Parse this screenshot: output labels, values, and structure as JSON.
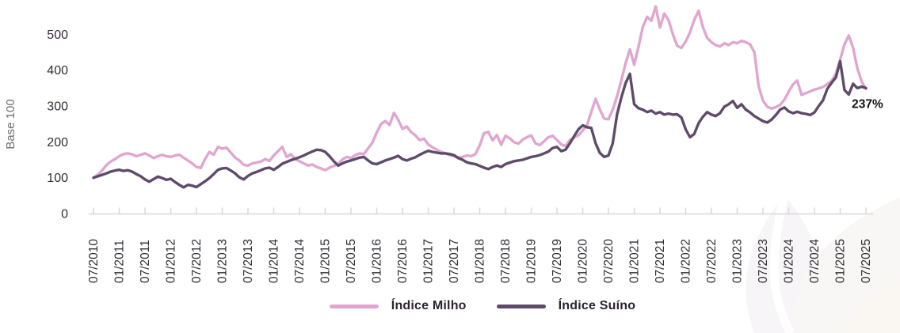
{
  "chart_data": {
    "type": "line",
    "ylabel": "Base 100",
    "y_ticks": [
      0,
      100,
      200,
      300,
      400,
      500
    ],
    "ylim": [
      0,
      595
    ],
    "grid": false,
    "legend_position": "bottom-center",
    "x_start": "07/2010",
    "x_end": "07/2025",
    "x_frequency": "monthly",
    "months_per_tick": 6,
    "x_tick_labels": [
      "07/2010",
      "01/2011",
      "07/2011",
      "01/2012",
      "07/2012",
      "01/2013",
      "07/2013",
      "01/2014",
      "07/2014",
      "01/2015",
      "07/2015",
      "01/2016",
      "07/2016",
      "01/2017",
      "07/2017",
      "01/2018",
      "07/2018",
      "01/2019",
      "07/2019",
      "01/2020",
      "07/2020",
      "01/2021",
      "07/2021",
      "01/2022",
      "07/2022",
      "01/2023",
      "07/2023",
      "01/2024",
      "07/2024",
      "01/2025",
      "07/2025"
    ],
    "annotation": {
      "text": "237%"
    },
    "series": [
      {
        "name": "Índice Milho",
        "color": "#E0A6CF",
        "values": [
          100,
          108,
          120,
          135,
          145,
          152,
          160,
          166,
          168,
          165,
          160,
          164,
          168,
          162,
          155,
          160,
          164,
          160,
          158,
          162,
          164,
          156,
          148,
          140,
          130,
          127,
          152,
          172,
          164,
          186,
          181,
          184,
          170,
          156,
          148,
          136,
          134,
          140,
          142,
          145,
          152,
          147,
          162,
          174,
          186,
          158,
          166,
          152,
          146,
          140,
          134,
          137,
          130,
          126,
          121,
          128,
          133,
          138,
          151,
          158,
          155,
          163,
          168,
          166,
          182,
          198,
          226,
          250,
          258,
          247,
          281,
          262,
          236,
          243,
          228,
          218,
          205,
          209,
          193,
          185,
          178,
          172,
          168,
          163,
          160,
          156,
          158,
          162,
          160,
          166,
          190,
          224,
          228,
          204,
          219,
          192,
          217,
          210,
          199,
          195,
          206,
          213,
          218,
          196,
          191,
          202,
          213,
          217,
          205,
          193,
          188,
          205,
          212,
          218,
          232,
          246,
          283,
          320,
          290,
          265,
          263,
          290,
          327,
          372,
          420,
          458,
          415,
          465,
          520,
          549,
          538,
          578,
          519,
          558,
          540,
          500,
          468,
          462,
          480,
          505,
          540,
          566,
          520,
          490,
          478,
          470,
          466,
          475,
          470,
          478,
          475,
          482,
          478,
          472,
          450,
          355,
          315,
          298,
          293,
          297,
          303,
          318,
          340,
          360,
          371,
          331,
          336,
          341,
          346,
          349,
          353,
          361,
          370,
          390,
          430,
          472,
          497,
          462,
          405,
          368,
          348
        ]
      },
      {
        "name": "Índice Suíno",
        "color": "#5E4B6B",
        "values": [
          100,
          104,
          108,
          112,
          117,
          120,
          122,
          119,
          121,
          117,
          110,
          104,
          95,
          89,
          96,
          103,
          99,
          94,
          97,
          88,
          80,
          73,
          80,
          78,
          74,
          82,
          90,
          99,
          110,
          122,
          126,
          127,
          120,
          112,
          101,
          95,
          105,
          112,
          116,
          121,
          126,
          128,
          122,
          130,
          139,
          144,
          149,
          153,
          157,
          162,
          168,
          173,
          178,
          177,
          172,
          160,
          146,
          134,
          140,
          145,
          148,
          152,
          156,
          158,
          148,
          140,
          138,
          143,
          148,
          152,
          156,
          161,
          152,
          148,
          153,
          157,
          164,
          170,
          175,
          172,
          170,
          168,
          168,
          166,
          163,
          155,
          150,
          143,
          140,
          138,
          133,
          128,
          124,
          130,
          134,
          130,
          138,
          142,
          146,
          148,
          150,
          154,
          158,
          160,
          163,
          168,
          173,
          183,
          186,
          174,
          178,
          196,
          216,
          235,
          246,
          241,
          239,
          196,
          169,
          158,
          162,
          196,
          276,
          324,
          364,
          390,
          305,
          294,
          290,
          283,
          287,
          279,
          283,
          276,
          279,
          276,
          277,
          268,
          235,
          213,
          222,
          252,
          270,
          283,
          276,
          272,
          280,
          298,
          305,
          314,
          295,
          305,
          290,
          282,
          272,
          265,
          258,
          254,
          262,
          275,
          290,
          296,
          285,
          280,
          284,
          280,
          278,
          275,
          282,
          300,
          316,
          348,
          365,
          380,
          425,
          345,
          332,
          362,
          350,
          354,
          350
        ]
      }
    ],
    "axis_colors": {
      "tick": "#d8d8d8",
      "label": "#332d36",
      "axis_title": "#6f6a73",
      "annotation": "#121212"
    }
  }
}
